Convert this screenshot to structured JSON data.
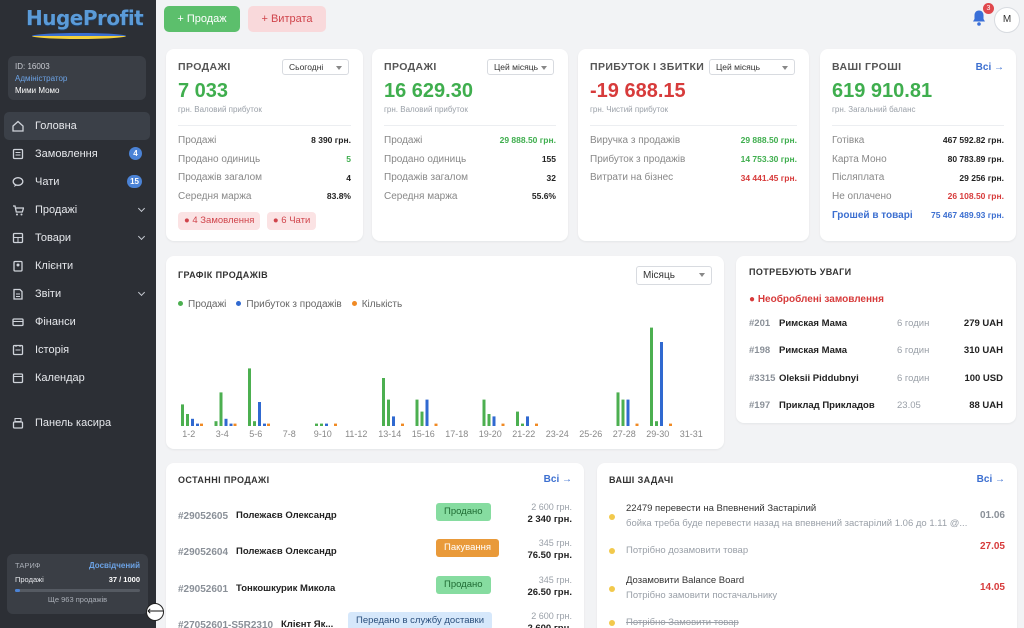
{
  "app": {
    "logo": "HugeProfit"
  },
  "user": {
    "id": "ID: 16003",
    "role": "Адміністратор",
    "name": "Мими Момо"
  },
  "nav": [
    {
      "label": "Головна",
      "icon": "home-icon",
      "badge": "",
      "chev": false,
      "active": true
    },
    {
      "label": "Замовлення",
      "icon": "orders-icon",
      "badge": "4",
      "chev": false,
      "active": false
    },
    {
      "label": "Чати",
      "icon": "chat-icon",
      "badge": "15",
      "chev": false,
      "active": false
    },
    {
      "label": "Продажі",
      "icon": "cart-icon",
      "badge": "",
      "chev": true,
      "active": false
    },
    {
      "label": "Товари",
      "icon": "box-icon",
      "badge": "",
      "chev": true,
      "active": false
    },
    {
      "label": "Клієнти",
      "icon": "clients-icon",
      "badge": "",
      "chev": false,
      "active": false
    },
    {
      "label": "Звіти",
      "icon": "reports-icon",
      "badge": "",
      "chev": true,
      "active": false
    },
    {
      "label": "Фінанси",
      "icon": "finance-icon",
      "badge": "",
      "chev": false,
      "active": false
    },
    {
      "label": "Історія",
      "icon": "history-icon",
      "badge": "",
      "chev": false,
      "active": false
    },
    {
      "label": "Календар",
      "icon": "calendar-icon",
      "badge": "",
      "chev": false,
      "active": false
    },
    {
      "label": "Панель касира",
      "icon": "cashier-icon",
      "badge": "",
      "chev": false,
      "active": false
    }
  ],
  "plan": {
    "label": "ТАРИФ",
    "level": "Досвідчений",
    "sales_label": "Продажі",
    "sales_count": "37 / 1000",
    "sales_fraction": 0.037,
    "remaining": "Ще 963 продажів"
  },
  "topbar": {
    "sale_btn": "+ Продаж",
    "expense_btn": "+ Витрата",
    "notif_count": "3",
    "avatar": "M"
  },
  "cards": {
    "sales_today": {
      "title": "ПРОДАЖІ",
      "period": "Сьогодні",
      "value": "7 033",
      "sub": "грн. Валовий прибуток",
      "rows": [
        [
          "Продажі",
          "8 390 грн."
        ],
        [
          "Продано одиниць",
          "5"
        ],
        [
          "Продажів загалом",
          "4"
        ],
        [
          "Середня маржа",
          "83.8%"
        ]
      ],
      "chips": [
        "● 4 Замовлення",
        "● 6 Чати"
      ]
    },
    "sales_month": {
      "title": "ПРОДАЖІ",
      "period": "Цей місяць",
      "value": "16 629.30",
      "sub": "грн. Валовий прибуток",
      "rows": [
        [
          "Продажі",
          "29 888.50 грн."
        ],
        [
          "Продано одиниць",
          "155"
        ],
        [
          "Продажів загалом",
          "32"
        ],
        [
          "Середня маржа",
          "55.6%"
        ]
      ]
    },
    "profit": {
      "title": "ПРИБУТОК І ЗБИТКИ",
      "period": "Цей місяць",
      "value": "-19 688.15",
      "sub": "грн. Чистий прибуток",
      "rows": [
        [
          "Виручка з продажів",
          "29 888.50 грн."
        ],
        [
          "Прибуток з продажів",
          "14 753.30 грн."
        ],
        [
          "Витрати на бізнес",
          "34 441.45 грн."
        ]
      ]
    },
    "money": {
      "title": "ВАШІ ГРОШІ",
      "all": "Всі →",
      "value": "619 910.81",
      "sub": "грн. Загальний баланс",
      "rows": [
        [
          "Готівка",
          "467 592.82 грн."
        ],
        [
          "Карта Моно",
          "80 783.89 грн."
        ],
        [
          "Післяплата",
          "29 256 грн."
        ],
        [
          "Не оплачено",
          "26 108.50 грн."
        ],
        [
          "Грошей в товарі",
          "75 467 489.93 грн."
        ]
      ]
    }
  },
  "chart": {
    "title": "ГРАФІК ПРОДАЖІВ",
    "period": "Місяць"
  },
  "chart_data": {
    "type": "bar",
    "categories": [
      "1-2",
      "3-4",
      "5-6",
      "7-8",
      "9-10",
      "11-12",
      "13-14",
      "15-16",
      "17-18",
      "19-20",
      "21-22",
      "23-24",
      "25-26",
      "27-28",
      "29-30",
      "31-31"
    ],
    "series": [
      {
        "name": "Продажі",
        "color": "#4caf50",
        "values": [
          [
            9,
            5
          ],
          [
            2,
            14
          ],
          [
            24,
            2
          ],
          [
            0,
            0
          ],
          [
            1,
            1
          ],
          [
            0,
            0
          ],
          [
            20,
            11
          ],
          [
            11,
            6
          ],
          [
            0,
            0
          ],
          [
            11,
            5
          ],
          [
            6,
            1
          ],
          [
            0,
            0
          ],
          [
            0,
            0
          ],
          [
            14,
            11
          ],
          [
            41,
            2
          ],
          [
            0,
            0
          ]
        ]
      },
      {
        "name": "Прибуток з продажів",
        "color": "#3069d0",
        "values": [
          [
            3,
            1
          ],
          [
            3,
            1
          ],
          [
            10,
            1
          ],
          [
            0,
            0
          ],
          [
            1,
            0
          ],
          [
            0,
            0
          ],
          [
            4,
            0
          ],
          [
            11,
            0
          ],
          [
            0,
            0
          ],
          [
            4,
            0
          ],
          [
            4,
            0
          ],
          [
            0,
            0
          ],
          [
            0,
            0
          ],
          [
            11,
            0
          ],
          [
            35,
            0
          ],
          [
            0,
            0
          ]
        ]
      },
      {
        "name": "Кількість",
        "color": "#f08a24",
        "values": [
          [
            1,
            0
          ],
          [
            1,
            0
          ],
          [
            1,
            0
          ],
          [
            0,
            0
          ],
          [
            1,
            0
          ],
          [
            0,
            0
          ],
          [
            1,
            0
          ],
          [
            1,
            0
          ],
          [
            0,
            0
          ],
          [
            1,
            0
          ],
          [
            1,
            0
          ],
          [
            0,
            0
          ],
          [
            0,
            0
          ],
          [
            1,
            0
          ],
          [
            1,
            0
          ],
          [
            0,
            0
          ]
        ]
      }
    ],
    "ylim": [
      0,
      45
    ],
    "grid": false,
    "legend": "top-left"
  },
  "attention": {
    "title": "ПОТРЕБУЮТЬ УВАГИ",
    "subtitle": "Необроблені замовлення",
    "rows": [
      [
        "#201",
        "Римская Мама",
        "6 годин",
        "279 UAH"
      ],
      [
        "#198",
        "Римская Мама",
        "6 годин",
        "310 UAH"
      ],
      [
        "#3315",
        "Oleksii Piddubnyi",
        "6 годин",
        "100 USD"
      ],
      [
        "#197",
        "Приклад Прикладов",
        "23.05",
        "88 UAH"
      ]
    ]
  },
  "recent": {
    "title": "ОСТАННІ ПРОДАЖІ",
    "all": "Всі →",
    "rows": [
      {
        "num": "#29052605",
        "client": "Полежаєв Олександр",
        "status": "Продано",
        "status_color": "#86dca0",
        "status_text": "#1f6b33",
        "price": "2 600 грн.",
        "paid": "2 340 грн."
      },
      {
        "num": "#29052604",
        "client": "Полежаєв Олександр",
        "status": "Пакування",
        "status_color": "#e99a3a",
        "status_text": "#ffffff",
        "price": "345 грн.",
        "paid": "76.50 грн."
      },
      {
        "num": "#29052601",
        "client": "Тонкошкурик Микола",
        "status": "Продано",
        "status_color": "#86dca0",
        "status_text": "#1f6b33",
        "price": "345 грн.",
        "paid": "26.50 грн."
      },
      {
        "num": "#27052601-S5R2310",
        "client": "Клієнт Як...",
        "status": "Передано в службу доставки",
        "status_color": "#d6e8fb",
        "status_text": "#2a4f7c",
        "price": "2 600 грн.",
        "paid": "2 600 грн."
      }
    ]
  },
  "tasks": {
    "title": "ВАШІ ЗАДАЧІ",
    "all": "Всі →",
    "rows": [
      {
        "title": "22479 перевести на Впевнений Застарілий",
        "sub": "бойка треба буде перевести назад на впевнений застарілий 1.06 до 1.11 @...",
        "date": "01.06",
        "date_color": "#8a9098"
      },
      {
        "title": "",
        "sub": "Потрібно дозамовити товар",
        "date": "27.05",
        "date_color": "#d73b3b"
      },
      {
        "title": "Дозамовити Balance Board",
        "sub": "Потрібно замовити постачальнику",
        "date": "14.05",
        "date_color": "#d73b3b"
      },
      {
        "title": "",
        "sub": "Потрібно Замовити товар",
        "date": "",
        "date_color": "#d73b3b"
      }
    ]
  }
}
